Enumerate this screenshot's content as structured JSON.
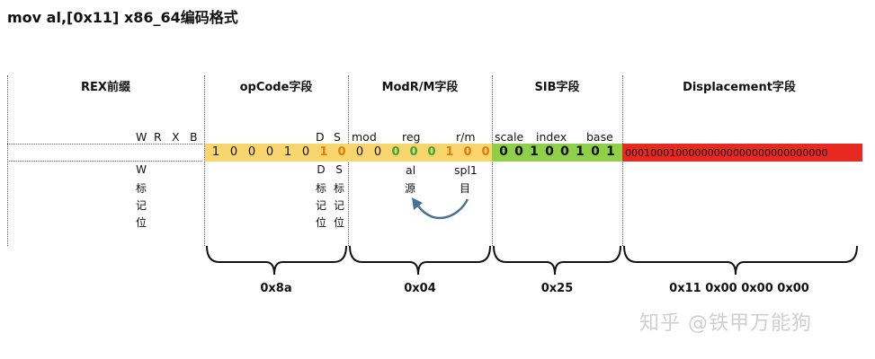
{
  "title": "mov al,[0x11] x86_64编码格式",
  "sections": {
    "rex": "REX前缀",
    "opcode": "opCode字段",
    "modrm": "ModR/M字段",
    "sib": "SIB字段",
    "displacement": "Displacement字段"
  },
  "rex_bits": [
    "W",
    "R",
    "X",
    "B"
  ],
  "rex_note": {
    "flag": "W",
    "chars": [
      "标",
      "记",
      "位"
    ]
  },
  "opcode": {
    "bits": [
      "1",
      "0",
      "0",
      "0",
      "1",
      "0",
      "1",
      "0"
    ],
    "d_label": "D",
    "s_label": "S",
    "d_note": [
      "D",
      "标",
      "记",
      "位"
    ],
    "s_note": [
      "S",
      "标",
      "记",
      "位"
    ],
    "hex": "0x8a"
  },
  "modrm": {
    "mod_label": "mod",
    "reg_label": "reg",
    "rm_label": "r/m",
    "bits": [
      "0",
      "0",
      "0",
      "0",
      "0",
      "1",
      "0",
      "0"
    ],
    "reg_note": "al",
    "reg_note2": "源",
    "rm_note": "spl1",
    "rm_note2": "目",
    "hex": "0x04"
  },
  "sib": {
    "scale_label": "scale",
    "index_label": "index",
    "base_label": "base",
    "bits": [
      "0",
      "0",
      "1",
      "0",
      "0",
      "1",
      "0",
      "1"
    ],
    "hex": "0x25"
  },
  "displacement": {
    "bits": "00010001000000000000000000000000",
    "hex": "0x11 0x00 0x00 0x00"
  },
  "watermark": "知乎 @铁甲万能狗",
  "colors": {
    "opcode_bg": "#f9d56e",
    "sib_bg": "#8fcf4a",
    "disp_bg": "#e62a22",
    "orange": "#e07b12",
    "green": "#3aa535",
    "arrow": "#4a7093"
  }
}
